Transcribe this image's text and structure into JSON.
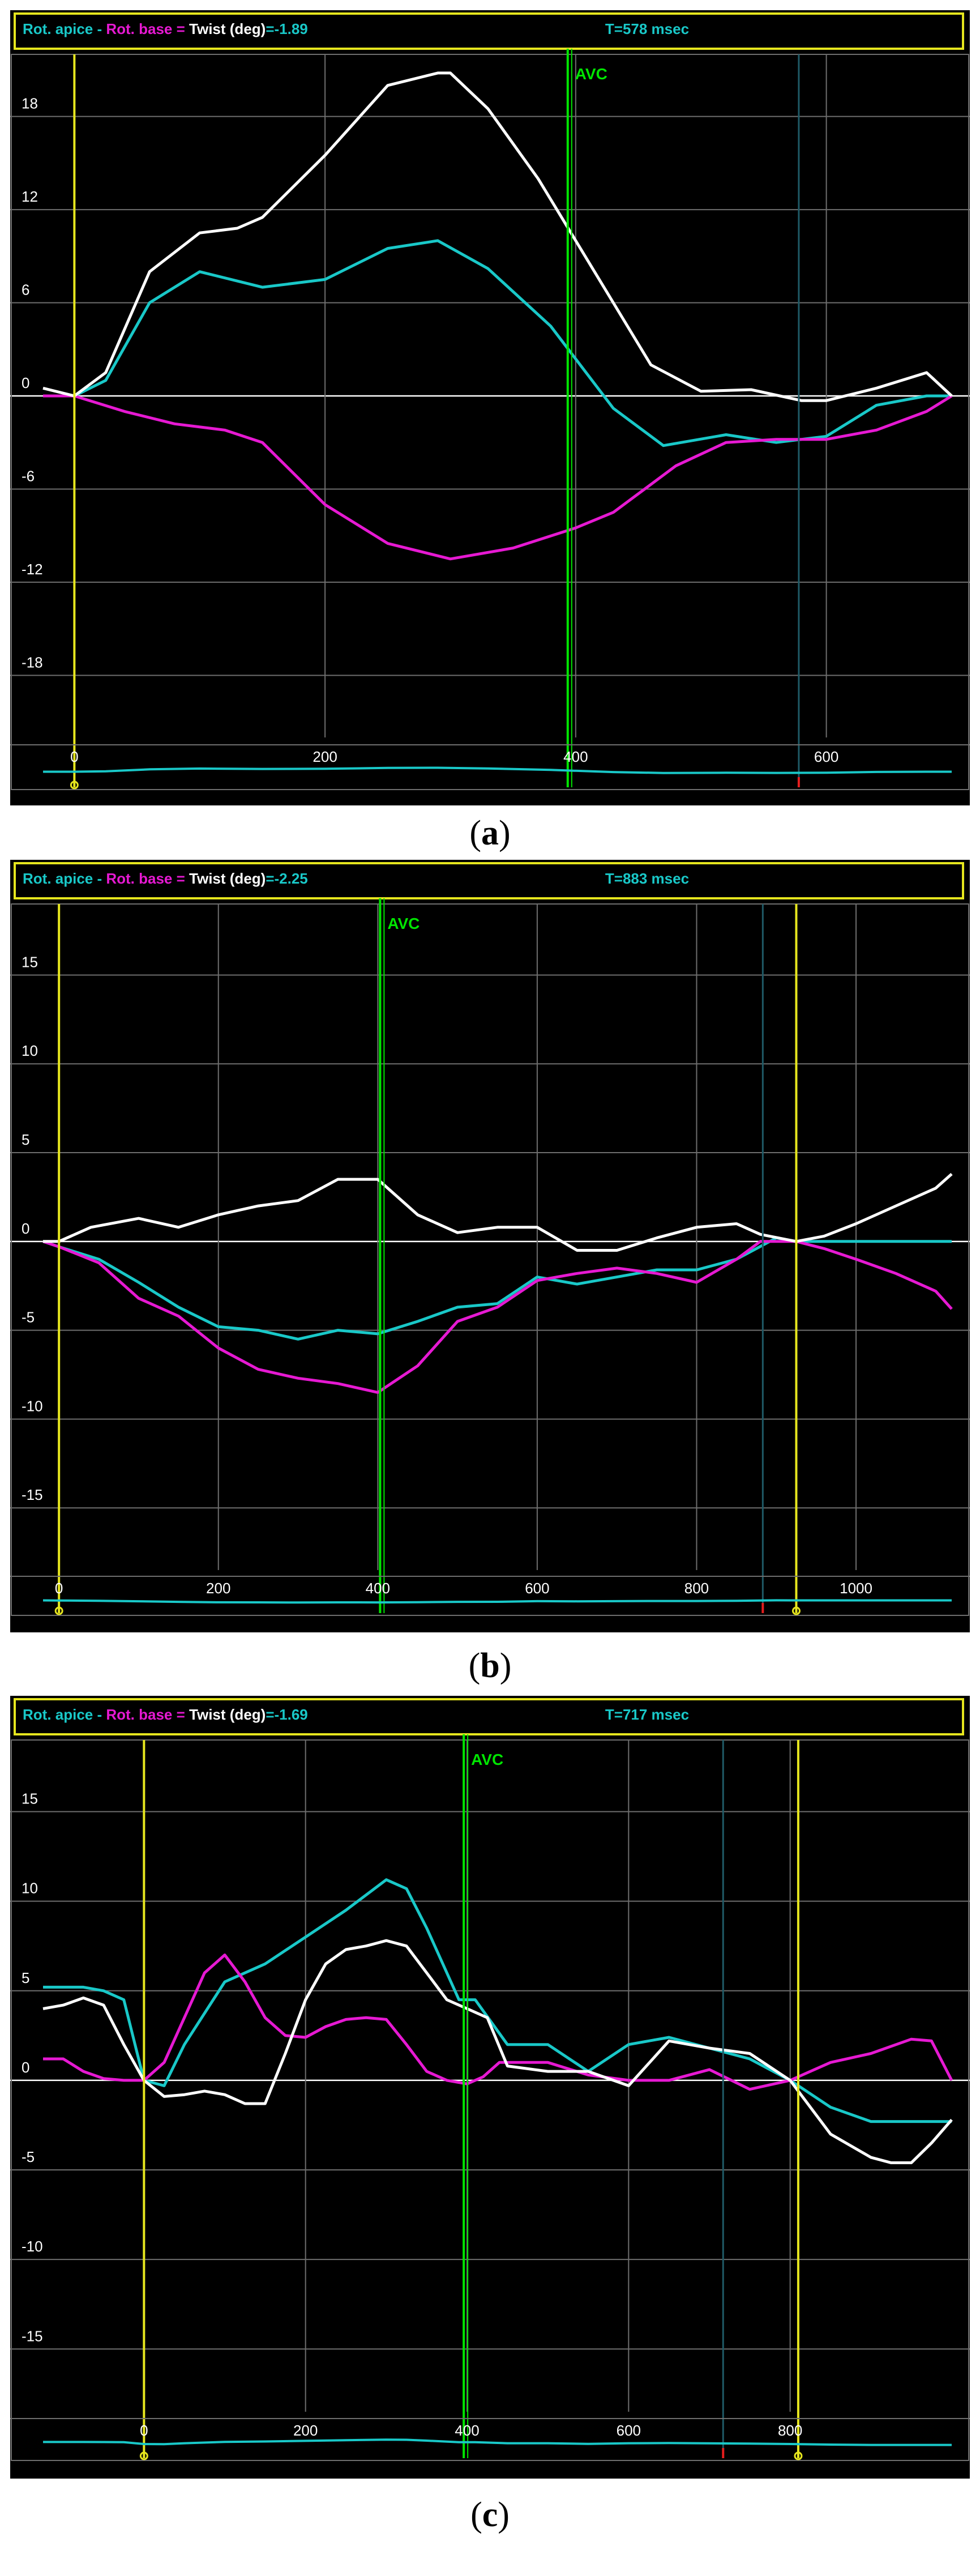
{
  "figure": {
    "captions": [
      {
        "open": "(",
        "letter": "a",
        "close": ")"
      },
      {
        "open": "(",
        "letter": "b",
        "close": ")"
      },
      {
        "open": "(",
        "letter": "c",
        "close": ")"
      }
    ]
  },
  "colors": {
    "apex": "#19c8c8",
    "base": "#e619d2",
    "twist": "#ffffff",
    "avc": "#00e600",
    "marker": "#e6e61e",
    "grid": "#6e6e6e",
    "background": "#000000"
  },
  "chart_data": [
    {
      "panel": "a",
      "type": "line",
      "legend": {
        "apex": "Rot. apice",
        "sep1": " - ",
        "base": "Rot. base",
        "sep2": " = ",
        "twist": "Twist (deg)",
        "value": "=-1.89",
        "time": "T=578 msec"
      },
      "xlim": [
        -25,
        700
      ],
      "ylim": [
        -22,
        22
      ],
      "xticks": [
        200,
        400,
        600
      ],
      "yticks": [
        18,
        12,
        6,
        0,
        -6,
        -12,
        -18
      ],
      "avc": {
        "x": 395,
        "label": "AVC"
      },
      "markers": [
        0
      ],
      "cursor_x": 578,
      "mini_label": "0",
      "series": [
        {
          "key": "apex",
          "x": [
            -25,
            0,
            25,
            60,
            100,
            150,
            200,
            250,
            290,
            330,
            380,
            430,
            470,
            520,
            560,
            600,
            640,
            680,
            700
          ],
          "y": [
            0,
            0,
            1,
            6,
            8,
            7,
            7.5,
            9.5,
            10,
            8.2,
            4.5,
            -0.8,
            -3.2,
            -2.5,
            -3,
            -2.6,
            -0.6,
            0,
            0
          ]
        },
        {
          "key": "base",
          "x": [
            -25,
            0,
            40,
            80,
            120,
            150,
            200,
            250,
            300,
            350,
            400,
            430,
            480,
            520,
            560,
            600,
            640,
            680,
            700
          ],
          "y": [
            0,
            0,
            -1,
            -1.8,
            -2.2,
            -3,
            -7,
            -9.5,
            -10.5,
            -9.8,
            -8.5,
            -7.5,
            -4.5,
            -3,
            -2.8,
            -2.8,
            -2.2,
            -1,
            0
          ]
        },
        {
          "key": "twist",
          "x": [
            -25,
            0,
            25,
            60,
            100,
            130,
            150,
            200,
            250,
            290,
            300,
            330,
            370,
            400,
            430,
            460,
            500,
            540,
            580,
            600,
            640,
            680,
            700
          ],
          "y": [
            0.5,
            0,
            1.5,
            8,
            10.5,
            10.8,
            11.5,
            15.5,
            20,
            20.8,
            20.8,
            18.5,
            14,
            10,
            6,
            2,
            0.3,
            0.4,
            -0.3,
            -0.3,
            0.5,
            1.5,
            0
          ]
        }
      ]
    },
    {
      "panel": "b",
      "type": "line",
      "legend": {
        "apex": "Rot. apice",
        "sep1": " - ",
        "base": "Rot. base",
        "sep2": " = ",
        "twist": "Twist (deg)",
        "value": "=-2.25",
        "time": "T=883 msec"
      },
      "xlim": [
        -20,
        1120
      ],
      "ylim": [
        -18.5,
        19
      ],
      "xticks": [
        200,
        400,
        600,
        800,
        1000
      ],
      "yticks": [
        15,
        10,
        5,
        0,
        -5,
        -10,
        -15
      ],
      "avc": {
        "x": 405,
        "label": "AVC"
      },
      "markers": [
        0,
        925
      ],
      "cursor_x": 883,
      "mini_label": "0",
      "series": [
        {
          "key": "apex",
          "x": [
            -20,
            0,
            50,
            100,
            150,
            200,
            250,
            300,
            350,
            400,
            450,
            500,
            550,
            600,
            650,
            700,
            750,
            800,
            850,
            900,
            925,
            950,
            1000,
            1050,
            1120
          ],
          "y": [
            0,
            -0.3,
            -1,
            -2.3,
            -3.7,
            -4.8,
            -5,
            -5.5,
            -5,
            -5.2,
            -4.5,
            -3.7,
            -3.5,
            -2,
            -2.4,
            -2,
            -1.6,
            -1.6,
            -1,
            0.2,
            0,
            0,
            0,
            0,
            0
          ]
        },
        {
          "key": "base",
          "x": [
            -20,
            0,
            50,
            100,
            150,
            200,
            250,
            300,
            350,
            400,
            450,
            500,
            550,
            600,
            650,
            700,
            750,
            800,
            850,
            880,
            925,
            960,
            1000,
            1050,
            1100,
            1120
          ],
          "y": [
            0,
            -0.3,
            -1.2,
            -3.2,
            -4.2,
            -6,
            -7.2,
            -7.7,
            -8,
            -8.5,
            -7,
            -4.5,
            -3.7,
            -2.2,
            -1.8,
            -1.5,
            -1.8,
            -2.3,
            -1,
            0,
            0,
            -0.4,
            -1,
            -1.8,
            -2.8,
            -3.8
          ]
        },
        {
          "key": "twist",
          "x": [
            -20,
            0,
            40,
            100,
            150,
            200,
            250,
            300,
            350,
            400,
            450,
            500,
            550,
            600,
            650,
            700,
            750,
            800,
            850,
            880,
            925,
            960,
            1000,
            1050,
            1100,
            1120
          ],
          "y": [
            0,
            0,
            0.8,
            1.3,
            0.8,
            1.5,
            2,
            2.3,
            3.5,
            3.5,
            1.5,
            0.5,
            0.8,
            0.8,
            -0.5,
            -0.5,
            0.2,
            0.8,
            1,
            0.4,
            0,
            0.3,
            1,
            2,
            3,
            3.8
          ]
        }
      ]
    },
    {
      "panel": "c",
      "type": "line",
      "legend": {
        "apex": "Rot. apice",
        "sep1": " - ",
        "base": "Rot. base",
        "sep2": " = ",
        "twist": "Twist (deg)",
        "value": "=-1.69",
        "time": "T=717 msec"
      },
      "xlim": [
        -125,
        1000
      ],
      "ylim": [
        -18.5,
        19
      ],
      "xticks": [
        200,
        400,
        600,
        800
      ],
      "yticks": [
        15,
        10,
        5,
        0,
        -5,
        -10,
        -15
      ],
      "avc": {
        "x": 398,
        "label": "AVC"
      },
      "markers": [
        0,
        810
      ],
      "cursor_x": 717,
      "mini_label": "0",
      "series": [
        {
          "key": "apex",
          "x": [
            -125,
            -75,
            -50,
            -25,
            0,
            25,
            50,
            100,
            150,
            200,
            250,
            300,
            325,
            350,
            390,
            410,
            450,
            500,
            550,
            600,
            650,
            700,
            750,
            800,
            850,
            900,
            950,
            1000
          ],
          "y": [
            5.2,
            5.2,
            5,
            4.5,
            0,
            -0.3,
            2,
            5.5,
            6.5,
            8,
            9.5,
            11.2,
            10.7,
            8.5,
            4.5,
            4.5,
            2,
            2,
            0.5,
            2,
            2.4,
            1.8,
            1.2,
            0,
            -1.5,
            -2.3,
            -2.3,
            -2.3
          ]
        },
        {
          "key": "base",
          "x": [
            -125,
            -100,
            -75,
            -50,
            -25,
            0,
            25,
            50,
            75,
            100,
            125,
            150,
            175,
            200,
            225,
            250,
            275,
            300,
            325,
            350,
            375,
            400,
            420,
            440,
            470,
            500,
            550,
            600,
            650,
            700,
            750,
            800,
            850,
            900,
            950,
            975,
            1000
          ],
          "y": [
            1.2,
            1.2,
            0.5,
            0.1,
            0,
            0,
            1,
            3.5,
            6,
            7,
            5.5,
            3.5,
            2.5,
            2.4,
            3,
            3.4,
            3.5,
            3.4,
            2,
            0.5,
            0,
            -0.2,
            0.2,
            1,
            1,
            1,
            0.3,
            0,
            0,
            0.6,
            -0.5,
            0,
            1,
            1.5,
            2.3,
            2.2,
            0
          ]
        },
        {
          "key": "twist",
          "x": [
            -125,
            -100,
            -75,
            -50,
            -25,
            0,
            25,
            50,
            75,
            100,
            125,
            150,
            175,
            200,
            225,
            250,
            275,
            300,
            325,
            350,
            375,
            400,
            425,
            450,
            500,
            550,
            600,
            650,
            700,
            750,
            800,
            850,
            900,
            925,
            950,
            975,
            1000
          ],
          "y": [
            4,
            4.2,
            4.6,
            4.2,
            2,
            0,
            -0.9,
            -0.8,
            -0.6,
            -0.8,
            -1.3,
            -1.3,
            1.5,
            4.5,
            6.5,
            7.3,
            7.5,
            7.8,
            7.5,
            6,
            4.5,
            4,
            3.5,
            0.8,
            0.5,
            0.5,
            -0.3,
            2.2,
            1.8,
            1.5,
            0,
            -3,
            -4.3,
            -4.6,
            -4.6,
            -3.5,
            -2.2
          ]
        }
      ]
    }
  ]
}
